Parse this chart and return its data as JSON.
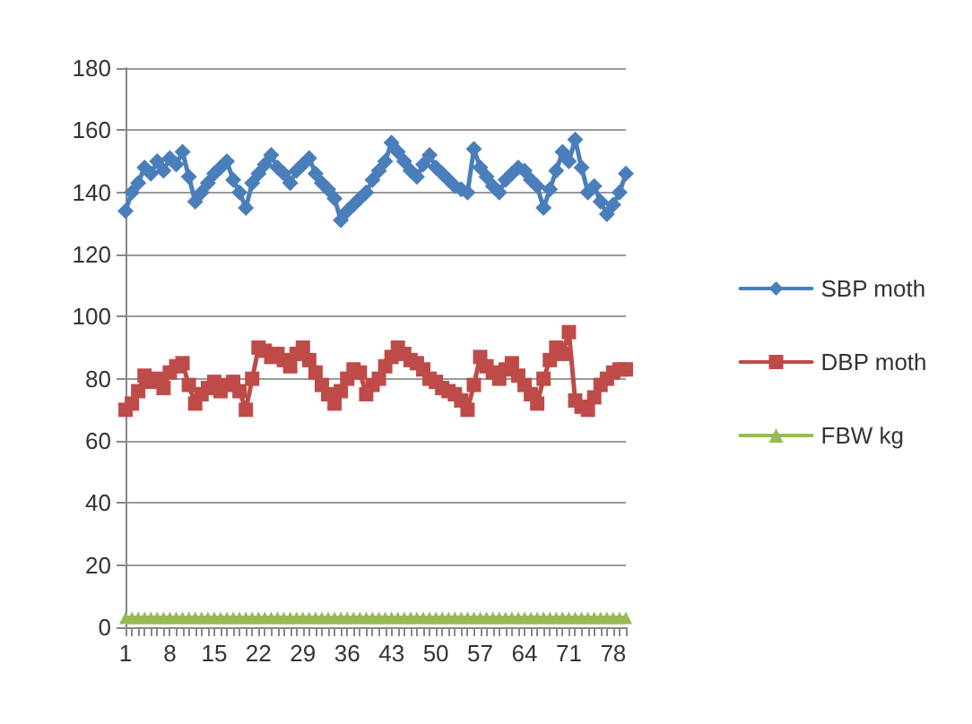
{
  "chart_data": {
    "type": "line",
    "categories": [
      "1",
      null,
      null,
      null,
      null,
      null,
      null,
      "8",
      null,
      null,
      null,
      null,
      null,
      null,
      "15",
      null,
      null,
      null,
      null,
      null,
      null,
      "22",
      null,
      null,
      null,
      null,
      null,
      null,
      "29",
      null,
      null,
      null,
      null,
      null,
      null,
      "36",
      null,
      null,
      null,
      null,
      null,
      null,
      "43",
      null,
      null,
      null,
      null,
      null,
      null,
      "50",
      null,
      null,
      null,
      null,
      null,
      null,
      "57",
      null,
      null,
      null,
      null,
      null,
      null,
      "64",
      null,
      null,
      null,
      null,
      null,
      null,
      "71",
      null,
      null,
      null,
      null,
      null,
      null,
      "78",
      null,
      null
    ],
    "series": [
      {
        "name": "SBP moth",
        "color": "#4a7ebb",
        "marker": "diamond",
        "values": [
          134,
          140,
          143,
          148,
          146,
          150,
          147,
          151,
          149,
          153,
          145,
          137,
          140,
          143,
          146,
          148,
          150,
          144,
          140,
          135,
          143,
          146,
          149,
          152,
          148,
          146,
          143,
          147,
          149,
          151,
          146,
          143,
          141,
          138,
          131,
          134,
          136,
          138,
          140,
          144,
          147,
          150,
          156,
          153,
          150,
          147,
          145,
          149,
          152,
          148,
          146,
          144,
          142,
          141,
          140,
          154,
          148,
          145,
          142,
          140,
          144,
          146,
          148,
          147,
          144,
          142,
          135,
          141,
          147,
          153,
          150,
          157,
          148,
          140,
          142,
          137,
          133,
          136,
          140,
          146
        ]
      },
      {
        "name": "DBP moth",
        "color": "#be4b48",
        "marker": "square",
        "values": [
          70,
          72,
          76,
          81,
          79,
          80,
          77,
          82,
          84,
          85,
          78,
          72,
          75,
          77,
          79,
          76,
          78,
          79,
          76,
          70,
          80,
          90,
          89,
          87,
          88,
          86,
          84,
          88,
          90,
          86,
          82,
          78,
          75,
          72,
          76,
          80,
          83,
          82,
          75,
          78,
          80,
          84,
          87,
          90,
          88,
          86,
          85,
          83,
          80,
          79,
          77,
          76,
          75,
          73,
          70,
          78,
          87,
          84,
          82,
          80,
          83,
          85,
          81,
          78,
          75,
          72,
          80,
          86,
          90,
          88,
          95,
          73,
          71,
          70,
          74,
          78,
          80,
          82,
          83,
          83
        ]
      },
      {
        "name": "FBW kg",
        "color": "#98b954",
        "marker": "triangle",
        "values": [
          3,
          3,
          3,
          3,
          3,
          3,
          3,
          3,
          3,
          3,
          3,
          3,
          3,
          3,
          3,
          3,
          3,
          3,
          3,
          3,
          3,
          3,
          3,
          3,
          3,
          3,
          3,
          3,
          3,
          3,
          3,
          3,
          3,
          3,
          3,
          3,
          3,
          3,
          3,
          3,
          3,
          3,
          3,
          3,
          3,
          3,
          3,
          3,
          3,
          3,
          3,
          3,
          3,
          3,
          3,
          3,
          3,
          3,
          3,
          3,
          3,
          3,
          3,
          3,
          3,
          3,
          3,
          3,
          3,
          3,
          3,
          3,
          3,
          3,
          3,
          3,
          3,
          3,
          3,
          3
        ]
      }
    ],
    "ylim": [
      0,
      180
    ],
    "yticks": [
      0,
      20,
      40,
      60,
      80,
      100,
      120,
      140,
      160,
      180
    ],
    "grid": "y",
    "legend": "right",
    "line_style": "solid"
  }
}
